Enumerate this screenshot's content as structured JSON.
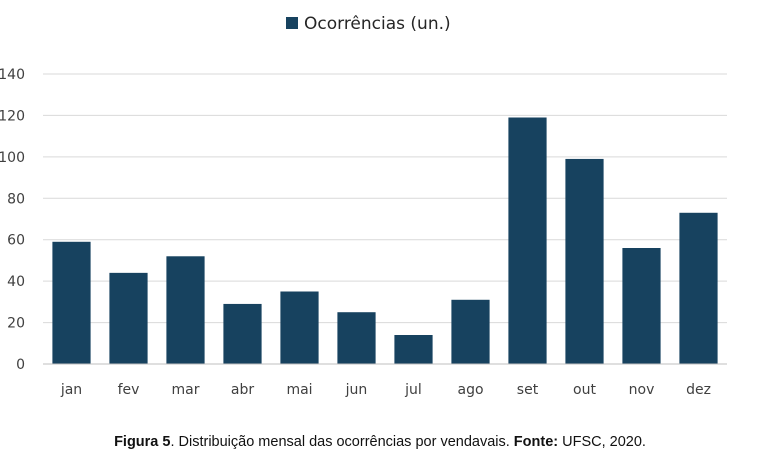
{
  "chart_data": {
    "type": "bar",
    "categories": [
      "jan",
      "fev",
      "mar",
      "abr",
      "mai",
      "jun",
      "jul",
      "ago",
      "set",
      "out",
      "nov",
      "dez"
    ],
    "series": [
      {
        "name": "Ocorrências (un.)",
        "values": [
          59,
          44,
          52,
          29,
          35,
          25,
          14,
          31,
          119,
          99,
          56,
          73
        ],
        "color": "#17425f"
      }
    ],
    "ylim": [
      0,
      140
    ],
    "yticks": [
      0,
      20,
      40,
      60,
      80,
      100,
      120,
      140
    ],
    "grid": true,
    "legend_position": "top-center",
    "gridline_color": "#d9d9d9",
    "axis_line_color": "#bfbfbf"
  },
  "caption": {
    "figure_label": "Figura 5",
    "text": ". Distribuição mensal das ocorrências por vendavais. ",
    "source_label": "Fonte:",
    "source_text": " UFSC, 2020."
  }
}
